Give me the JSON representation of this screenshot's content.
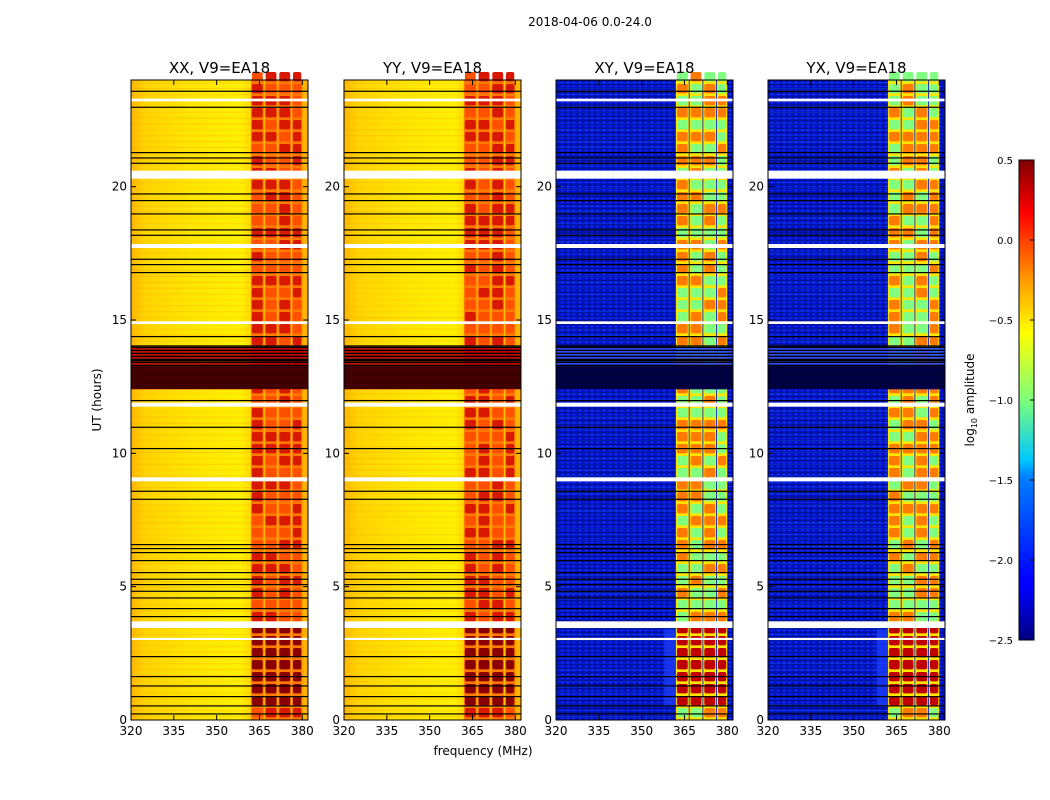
{
  "suptitle": "2018-04-06 0.0-24.0",
  "chart_data": {
    "type": "heatmap",
    "suptitle": "2018-04-06 0.0-24.0",
    "xlabel": "frequency (MHz)",
    "ylabel": "UT (hours)",
    "xlim": [
      320,
      382
    ],
    "ylim": [
      0,
      24
    ],
    "xticks": [
      320,
      335,
      350,
      365,
      380
    ],
    "xtick_labels": [
      "320",
      "335",
      "350",
      "365",
      "380"
    ],
    "yticks": [
      0,
      5,
      10,
      15,
      20
    ],
    "ytick_labels": [
      "0",
      "5",
      "10",
      "15",
      "20"
    ],
    "panels": [
      {
        "title": "XX, V9=EA18",
        "pol": "XX",
        "kind": "auto"
      },
      {
        "title": "YY, V9=EA18",
        "pol": "YY",
        "kind": "auto"
      },
      {
        "title": "XY, V9=EA18",
        "pol": "XY",
        "kind": "cross"
      },
      {
        "title": "YX, V9=EA18",
        "pol": "YX",
        "kind": "cross"
      }
    ],
    "colorbar": {
      "label_prefix": "log",
      "label_sub": "10",
      "label_suffix": " amplitude",
      "range": [
        -2.5,
        0.5
      ],
      "ticks": [
        0.5,
        0.0,
        -0.5,
        -1.0,
        -1.5,
        -2.0,
        -2.5
      ],
      "tick_labels": [
        "0.5",
        "0.0",
        "−0.5",
        "−1.0",
        "−1.5",
        "−2.0",
        "−2.5"
      ],
      "colormap": "jet"
    },
    "features": {
      "signal_band_mhz": [
        362,
        380
      ],
      "signal_subbands_mhz": [
        [
          362,
          366.5
        ],
        [
          366.8,
          371.3
        ],
        [
          371.6,
          376.1
        ],
        [
          376.4,
          380
        ]
      ],
      "flagged_white_hours": [
        [
          20.3,
          20.6
        ],
        [
          17.7,
          17.85
        ],
        [
          14.85,
          14.95
        ],
        [
          11.75,
          11.9
        ],
        [
          8.95,
          9.1
        ],
        [
          3.45,
          3.7
        ],
        [
          23.2,
          23.3
        ],
        [
          3.0,
          3.08
        ]
      ],
      "dense_black_hours": [
        [
          12.4,
          13.3
        ]
      ],
      "rfi_hatched_hours": [
        [
          13.3,
          14.0
        ]
      ],
      "strong_interval_hours": [
        [
          0.5,
          3.4
        ]
      ],
      "black_line_hours": [
        0.25,
        0.55,
        0.9,
        1.3,
        1.65,
        2.4,
        3.9,
        4.2,
        4.6,
        4.85,
        5.1,
        5.3,
        5.55,
        6.0,
        6.3,
        6.45,
        6.6,
        8.3,
        8.6,
        10.2,
        11.0,
        12.0,
        13.5,
        14.05,
        14.4,
        16.8,
        17.1,
        17.3,
        18.2,
        18.4,
        19.0,
        19.5,
        19.75,
        20.9,
        21.1,
        21.3,
        23.0,
        23.6
      ]
    }
  }
}
